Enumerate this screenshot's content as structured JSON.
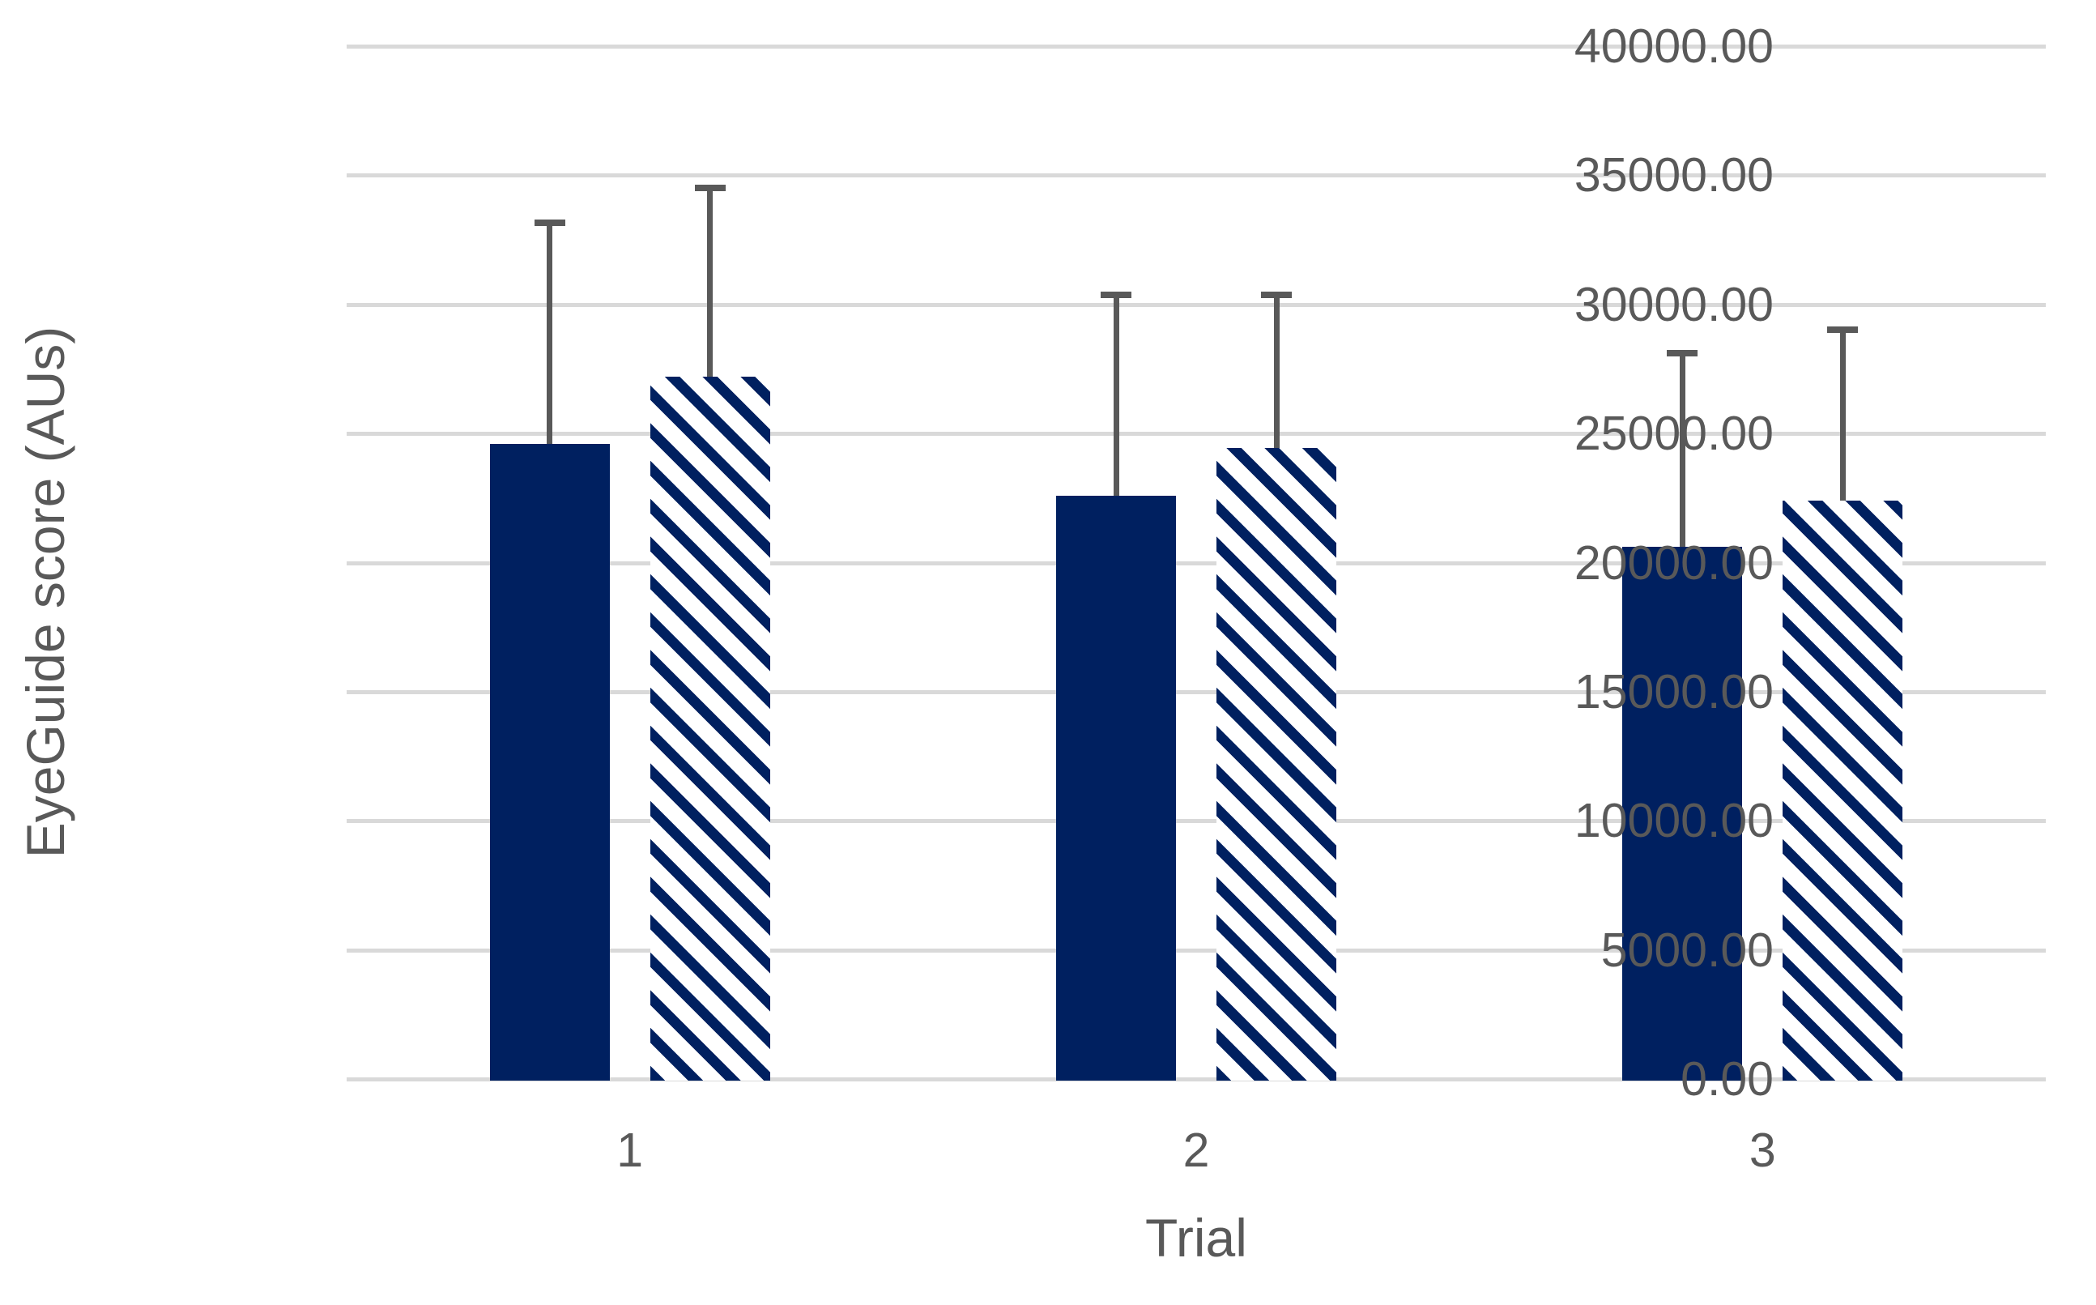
{
  "chart_data": {
    "type": "bar",
    "title": "",
    "xlabel": "Trial",
    "ylabel": "EyeGuide score (AUs)",
    "categories": [
      "1",
      "2",
      "3"
    ],
    "series": [
      {
        "name": "solid-navy-bars",
        "pattern": "solid",
        "values": [
          24600,
          22600,
          20600
        ],
        "error_plus": [
          8700,
          7900,
          7650
        ]
      },
      {
        "name": "diagonal-hatched-bars",
        "pattern": "diagonal-stripes",
        "values": [
          27200,
          24450,
          22400
        ],
        "error_plus": [
          7450,
          6050,
          6750
        ]
      }
    ],
    "ylim": [
      0,
      40000
    ],
    "ytick_interval": 5000,
    "ytick_labels": [
      "0.00",
      "5000.00",
      "10000.00",
      "15000.00",
      "20000.00",
      "25000.00",
      "30000.00",
      "35000.00",
      "40000.00"
    ],
    "xtick_labels": [
      "1",
      "2",
      "3"
    ],
    "grid": "horizontal",
    "legend": "none",
    "error_bars": "positive direction only, capped",
    "colors": {
      "bar_fill": "#002060",
      "hatch_background": "#FFFFFF",
      "error_bar": "#595959",
      "gridline": "#D9D9D9",
      "axis_text": "#595959"
    }
  }
}
